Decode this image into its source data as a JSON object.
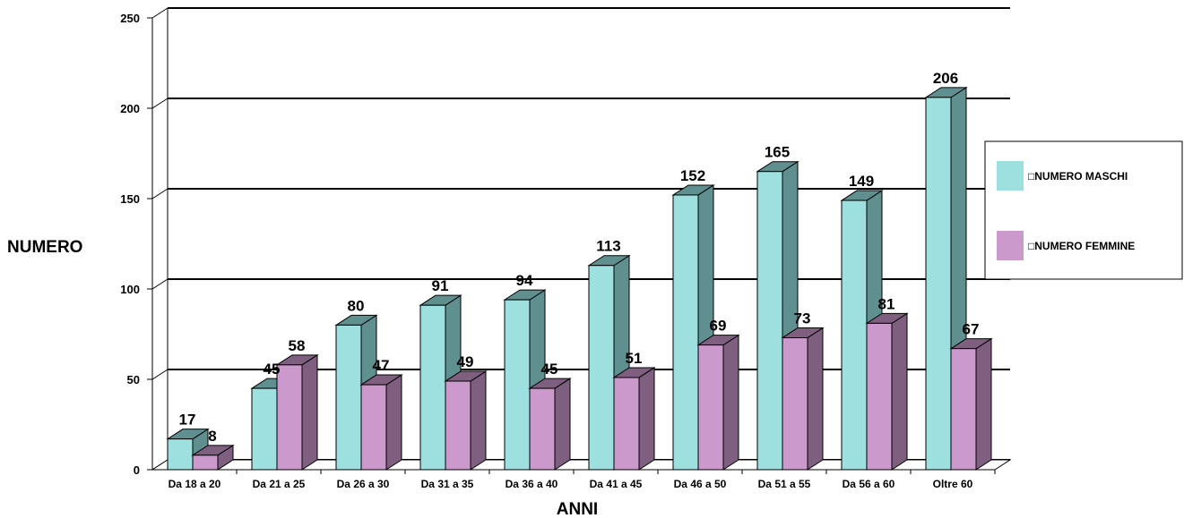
{
  "chart_data": {
    "type": "bar",
    "title": "",
    "xlabel": "ANNI",
    "ylabel": "NUMERO",
    "ylim": [
      0,
      250
    ],
    "yticks": [
      0,
      50,
      100,
      150,
      200,
      250
    ],
    "grid": true,
    "legend_position": "right",
    "categories": [
      "Da 18 a 20",
      "Da 21 a 25",
      "Da 26 a 30",
      "Da 31 a 35",
      "Da 36 a 40",
      "Da 41 a 45",
      "Da 46 a 50",
      "Da 51 a 55",
      "Da 56 a 60",
      "Oltre 60"
    ],
    "series": [
      {
        "name": "NUMERO MASCHI",
        "values": [
          17,
          45,
          80,
          91,
          94,
          113,
          152,
          165,
          149,
          206
        ],
        "color": "#9EDFDF",
        "side_color": "#5F8F8F"
      },
      {
        "name": "NUMERO FEMMINE",
        "values": [
          8,
          58,
          47,
          49,
          45,
          51,
          69,
          73,
          81,
          67
        ],
        "color": "#CC99CC",
        "side_color": "#7F5F7F"
      }
    ]
  },
  "legend_marker_glyph": "□"
}
